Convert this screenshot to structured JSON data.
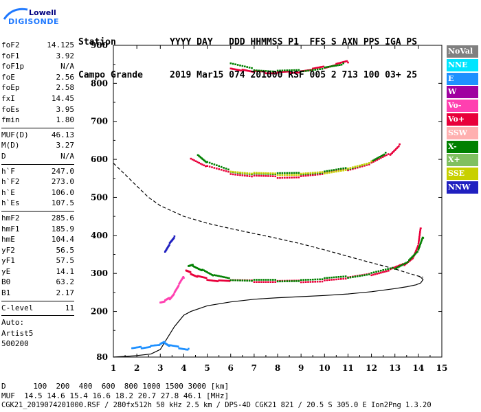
{
  "logo": {
    "line1": "Lowell",
    "line2": "DIGISONDE"
  },
  "header": {
    "line1": "Station          YYYY DAY   DDD HHMMSS P1  FFS S AXN PPS IGA PS",
    "line2": "Campo Grande     2019 Mar15 074 201000 RSF 005 2 713 100 03+ 25"
  },
  "params_group1": [
    {
      "label": "foF2",
      "value": "14.125"
    },
    {
      "label": "foF1",
      "value": "3.92"
    },
    {
      "label": "foF1p",
      "value": "N/A"
    },
    {
      "label": "foE",
      "value": "2.56"
    },
    {
      "label": "foEp",
      "value": "2.58"
    },
    {
      "label": "fxI",
      "value": "14.45"
    },
    {
      "label": "foEs",
      "value": "3.95"
    },
    {
      "label": "fmin",
      "value": "1.80"
    }
  ],
  "params_group2": [
    {
      "label": "MUF(D)",
      "value": "46.13"
    },
    {
      "label": "M(D)",
      "value": "3.27"
    },
    {
      "label": "D",
      "value": "N/A"
    }
  ],
  "params_group3": [
    {
      "label": "h`F",
      "value": "247.0"
    },
    {
      "label": "h`F2",
      "value": "273.0"
    },
    {
      "label": "h`E",
      "value": "106.0"
    },
    {
      "label": "h`Es",
      "value": "107.5"
    }
  ],
  "params_group4": [
    {
      "label": "hmF2",
      "value": "285.6"
    },
    {
      "label": "hmF1",
      "value": "185.9"
    },
    {
      "label": "hmE",
      "value": "104.4"
    },
    {
      "label": "yF2",
      "value": "56.5"
    },
    {
      "label": "yF1",
      "value": "57.5"
    },
    {
      "label": "yE",
      "value": "14.1"
    },
    {
      "label": "B0",
      "value": "63.2"
    },
    {
      "label": "B1",
      "value": "2.17"
    }
  ],
  "params_group5": [
    {
      "label": "C-level",
      "value": "11"
    }
  ],
  "autoscale": {
    "line1": "Auto:",
    "line2": "Artist5",
    "line3": "500200"
  },
  "legend": [
    {
      "label": "NoVal",
      "bg": "#808080",
      "fg": "#ffffff"
    },
    {
      "label": "NNE",
      "bg": "#00e5ff",
      "fg": "#ffffff"
    },
    {
      "label": "E",
      "bg": "#1e90ff",
      "fg": "#ffffff"
    },
    {
      "label": "W",
      "bg": "#a000a0",
      "fg": "#ffffff"
    },
    {
      "label": "Vo-",
      "bg": "#ff40b0",
      "fg": "#ffffff"
    },
    {
      "label": "Vo+",
      "bg": "#e8003a",
      "fg": "#ffffff"
    },
    {
      "label": "SSW",
      "bg": "#ffb0b0",
      "fg": "#ffffff"
    },
    {
      "label": "X-",
      "bg": "#008000",
      "fg": "#ffffff"
    },
    {
      "label": "X+",
      "bg": "#80c060",
      "fg": "#ffffff"
    },
    {
      "label": "SSE",
      "bg": "#c8d000",
      "fg": "#ffffff"
    },
    {
      "label": "NNW",
      "bg": "#2020c0",
      "fg": "#ffffff"
    }
  ],
  "footer": {
    "line1": "D      100  200  400  600  800 1000 1500 3000 [km]",
    "line2": "MUF  14.5 14.6 15.4 16.6 18.2 20.7 27.8 46.1 [MHz]",
    "line3": "CGK21_2019074201000.RSF / 280fx512h 50 kHz 2.5 km / DPS-4D CGK21 821 / 20.5 S 305.0 E Ion2Png 1.3.20"
  },
  "chart_data": {
    "type": "scatter",
    "title": "",
    "xlabel": "",
    "ylabel": "",
    "xlim": [
      1,
      15
    ],
    "ylim": [
      80,
      900
    ],
    "x_ticks": [
      1,
      2,
      3,
      4,
      5,
      6,
      7,
      8,
      9,
      10,
      11,
      12,
      13,
      14,
      15
    ],
    "y_ticks": [
      80,
      200,
      300,
      400,
      500,
      600,
      700,
      800,
      900
    ],
    "grid": false,
    "legend_position": "right",
    "series": [
      {
        "color": "#e8003a",
        "style": "points",
        "x": [
          4.1,
          4.3,
          4.6,
          5.0,
          5.5,
          6.0,
          7.0,
          8.0,
          9.0,
          10.0,
          11.0,
          12.0,
          12.8,
          13.4,
          13.8,
          14.0,
          14.1
        ],
        "y": [
          305,
          300,
          292,
          286,
          282,
          280,
          279,
          279,
          280,
          282,
          287,
          297,
          310,
          325,
          345,
          375,
          420
        ]
      },
      {
        "color": "#e8003a",
        "style": "points",
        "x": [
          4.3,
          5.0,
          6.0,
          7.0,
          8.0,
          9.0,
          10.0,
          11.0,
          12.0,
          12.8,
          13.2
        ],
        "y": [
          602,
          580,
          563,
          556,
          554,
          556,
          562,
          573,
          590,
          615,
          640
        ]
      },
      {
        "color": "#e8003a",
        "style": "points",
        "x": [
          6.0,
          6.5,
          7.0,
          7.5,
          8.0,
          8.5,
          9.0,
          9.5,
          10.0,
          10.5,
          11.0
        ],
        "y": [
          842,
          836,
          830,
          828,
          828,
          830,
          832,
          836,
          842,
          850,
          858
        ]
      },
      {
        "color": "#008000",
        "style": "points",
        "x": [
          4.2,
          4.4,
          4.8,
          5.3,
          6.0,
          7.0,
          8.0,
          9.0,
          10.0,
          11.0,
          12.0,
          13.0,
          13.6,
          14.0,
          14.2
        ],
        "y": [
          318,
          322,
          310,
          293,
          284,
          282,
          282,
          283,
          285,
          290,
          300,
          315,
          335,
          360,
          395
        ]
      },
      {
        "color": "#008000",
        "style": "points",
        "x": [
          4.6,
          5.0,
          6.0,
          7.0,
          8.0,
          9.0,
          10.0,
          11.0,
          12.0,
          12.6
        ],
        "y": [
          613,
          592,
          570,
          563,
          561,
          562,
          567,
          577,
          595,
          615
        ]
      },
      {
        "color": "#008000",
        "style": "points",
        "x": [
          6.0,
          7.0,
          8.0,
          9.0,
          10.0,
          10.8
        ],
        "y": [
          850,
          836,
          832,
          834,
          842,
          850
        ]
      },
      {
        "color": "#c8d000",
        "style": "points",
        "x": [
          6.0,
          7.0,
          8.0,
          9.0,
          10.0,
          11.0,
          12.0
        ],
        "y": [
          568,
          562,
          560,
          561,
          566,
          576,
          592
        ]
      },
      {
        "color": "#2020c0",
        "style": "points",
        "x": [
          3.2,
          3.4,
          3.6
        ],
        "y": [
          360,
          380,
          395
        ]
      },
      {
        "color": "#1e90ff",
        "style": "points",
        "x": [
          1.8,
          2.2,
          2.6,
          3.0,
          3.2,
          3.4,
          3.8,
          4.2
        ],
        "y": [
          102,
          106,
          110,
          112,
          118,
          110,
          106,
          102
        ]
      },
      {
        "color": "#ff40b0",
        "style": "points",
        "x": [
          3.0,
          3.2,
          3.4,
          3.6,
          3.8,
          4.0
        ],
        "y": [
          225,
          228,
          235,
          250,
          270,
          290
        ]
      },
      {
        "color": "#000000",
        "style": "line",
        "x": [
          1.0,
          1.6,
          2.0,
          2.6,
          3.0,
          3.3,
          3.6,
          4.0,
          4.3,
          5.0,
          6.0,
          7.0,
          8.0,
          9.0,
          10.0,
          11.0,
          12.0,
          13.0,
          13.5,
          13.9,
          14.1,
          14.2,
          14.1,
          14.0
        ],
        "y": [
          80,
          82,
          84,
          88,
          100,
          130,
          160,
          190,
          200,
          215,
          225,
          232,
          236,
          239,
          242,
          246,
          252,
          260,
          265,
          270,
          275,
          284,
          290,
          293
        ]
      },
      {
        "color": "#000000",
        "style": "dashed",
        "x": [
          1.0,
          1.5,
          2.0,
          2.5,
          3.0,
          4.0,
          5.0,
          6.0,
          7.0,
          8.0,
          9.0,
          10.0,
          11.0,
          12.0,
          13.0,
          13.6,
          14.0,
          14.2
        ],
        "y": [
          590,
          560,
          530,
          500,
          478,
          450,
          432,
          418,
          405,
          392,
          378,
          362,
          345,
          328,
          312,
          300,
          293,
          290
        ]
      }
    ]
  }
}
